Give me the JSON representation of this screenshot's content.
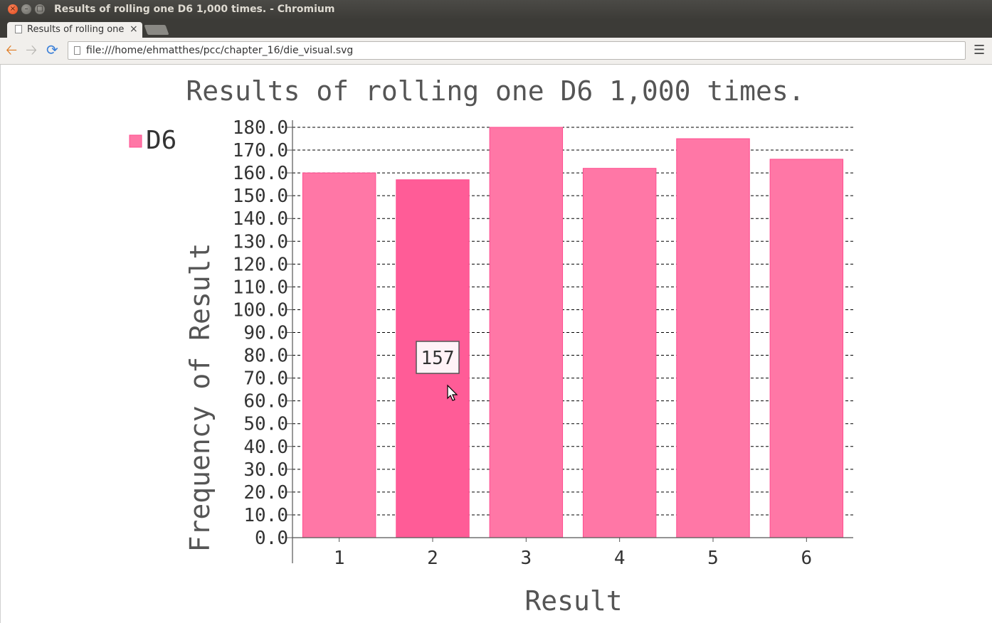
{
  "window": {
    "title": "Results of rolling one D6 1,000 times. - Chromium"
  },
  "tabs": [
    {
      "label": "Results of rolling one",
      "close": "×"
    }
  ],
  "toolbar": {
    "url": "file:///home/ehmatthes/pcc/chapter_16/die_visual.svg"
  },
  "icons": {
    "back": "arrow-left-icon",
    "forward": "arrow-right-icon",
    "reload": "reload-icon",
    "menu": "hamburger-menu-icon",
    "page": "document-icon"
  },
  "colors": {
    "bar": "#ff77a6",
    "bar_stroke": "#ff4d8f",
    "bar_hover": "#ff5c97",
    "title_text": "#555555"
  },
  "tooltip": {
    "value": "157"
  },
  "chart_data": {
    "type": "bar",
    "title": "Results of rolling one D6 1,000 times.",
    "xlabel": "Result",
    "ylabel": "Frequency of Result",
    "categories": [
      "1",
      "2",
      "3",
      "4",
      "5",
      "6"
    ],
    "series": [
      {
        "name": "D6",
        "values": [
          160,
          157,
          180,
          162,
          175,
          166
        ]
      }
    ],
    "ylim": [
      0,
      180
    ],
    "yticks": [
      "0.0",
      "10.0",
      "20.0",
      "30.0",
      "40.0",
      "50.0",
      "60.0",
      "70.0",
      "80.0",
      "90.0",
      "100.0",
      "110.0",
      "120.0",
      "130.0",
      "140.0",
      "150.0",
      "160.0",
      "170.0",
      "180.0"
    ],
    "grid": true,
    "legend": "top-left",
    "highlighted_category": "2"
  }
}
